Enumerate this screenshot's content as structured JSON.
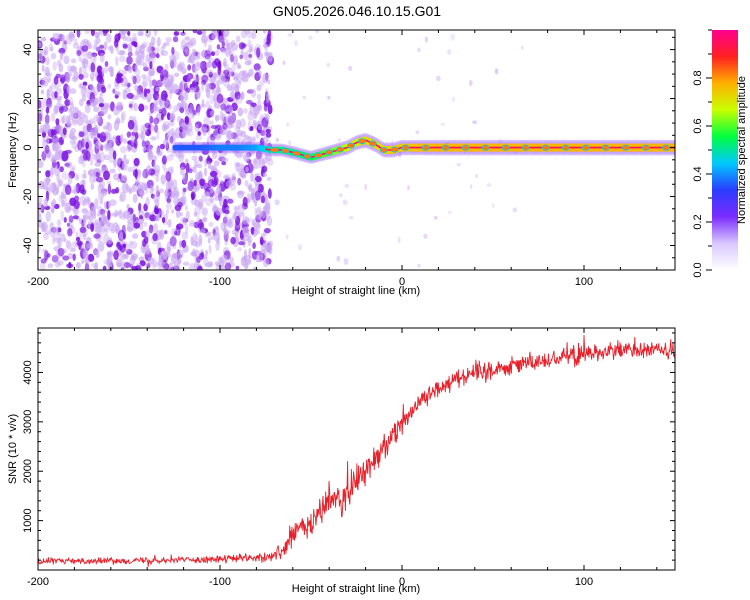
{
  "title": "GN05.2026.046.10.15.G01",
  "colors": {
    "speckle": "#7a10e0",
    "speckle_light": "#c9a6f2",
    "snr_line": "#e8202a",
    "colorbar": [
      "#ffffff",
      "#d9c7ff",
      "#7b2cff",
      "#2a3cff",
      "#00c8ff",
      "#00ff40",
      "#c8ff00",
      "#ffb000",
      "#ff2020",
      "#ff0090"
    ]
  },
  "chart_data": [
    {
      "type": "heatmap",
      "name": "spectrogram",
      "title": "GN05.2026.046.10.15.G01",
      "xlabel": "Height of straight line (km)",
      "ylabel": "Frequency (Hz)",
      "xlim": [
        -200,
        150
      ],
      "ylim": [
        -50,
        48
      ],
      "xticks": [
        -200,
        -100,
        0,
        100
      ],
      "yticks": [
        -40,
        -20,
        0,
        20,
        40
      ],
      "noise_region_x": [
        -200,
        -72
      ],
      "ridge": {
        "x": [
          -125,
          -110,
          -100,
          -90,
          -80,
          -72,
          -66,
          -60,
          -55,
          -50,
          -45,
          -40,
          -35,
          -30,
          -25,
          -20,
          -17,
          -14,
          -10,
          -5,
          0,
          10,
          25,
          50,
          100,
          150
        ],
        "y": [
          0,
          0,
          0,
          0,
          0,
          -1,
          -1,
          -2,
          -3,
          -4,
          -3,
          -2,
          -1,
          0,
          2,
          3,
          2,
          1,
          -1,
          -1,
          0,
          0,
          0,
          0,
          0,
          0
        ],
        "amplitude": [
          0.25,
          0.25,
          0.3,
          0.3,
          0.35,
          0.5,
          0.55,
          0.55,
          0.55,
          0.6,
          0.65,
          0.7,
          0.75,
          0.8,
          0.85,
          0.9,
          0.9,
          0.9,
          0.9,
          0.95,
          0.95,
          0.98,
          1.0,
          1.0,
          1.0,
          1.0
        ]
      },
      "colorbar": {
        "label": "Normalized spectral amplitude",
        "range": [
          0,
          1
        ],
        "ticks": [
          0.0,
          0.2,
          0.4,
          0.6,
          0.8
        ]
      }
    },
    {
      "type": "line",
      "name": "snr",
      "xlabel": "Height of straight line (km)",
      "ylabel": "SNR (10 * v/v)",
      "xlim": [
        -200,
        150
      ],
      "ylim": [
        0,
        4900
      ],
      "xticks": [
        -200,
        -100,
        0,
        100
      ],
      "yticks": [
        1000,
        2000,
        3000,
        4000
      ],
      "series": [
        {
          "name": "SNR",
          "x": [
            -200,
            -150,
            -100,
            -80,
            -72,
            -65,
            -60,
            -55,
            -50,
            -45,
            -40,
            -35,
            -30,
            -25,
            -20,
            -15,
            -10,
            -5,
            0,
            10,
            20,
            30,
            40,
            60,
            80,
            100,
            120,
            150
          ],
          "y": [
            180,
            190,
            220,
            250,
            260,
            400,
            700,
            850,
            900,
            1200,
            1350,
            1450,
            1500,
            1800,
            2000,
            2200,
            2500,
            2800,
            3000,
            3400,
            3700,
            3900,
            4000,
            4150,
            4250,
            4400,
            4450,
            4450
          ],
          "noise": [
            90,
            90,
            110,
            130,
            140,
            250,
            400,
            450,
            500,
            500,
            500,
            500,
            500,
            500,
            500,
            500,
            450,
            400,
            350,
            300,
            300,
            300,
            300,
            280,
            280,
            300,
            300,
            300
          ]
        }
      ]
    }
  ]
}
